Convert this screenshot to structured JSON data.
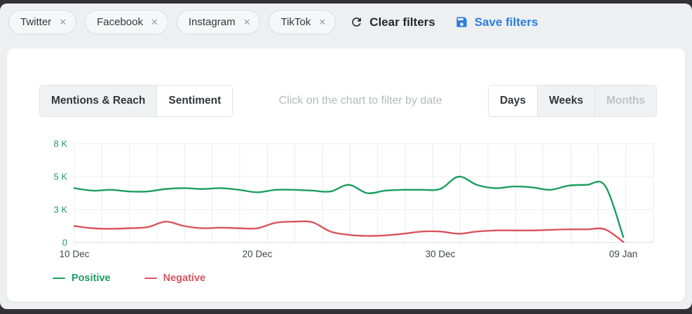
{
  "filter_bar": {
    "chips": [
      {
        "label": "Twitter"
      },
      {
        "label": "Facebook"
      },
      {
        "label": "Instagram"
      },
      {
        "label": "TikTok"
      }
    ],
    "close_glyph": "✕",
    "clear_filters_label": "Clear filters",
    "save_filters_label": "Save filters"
  },
  "panel": {
    "tabs": [
      {
        "label": "Mentions & Reach",
        "selected": false
      },
      {
        "label": "Sentiment",
        "selected": true
      }
    ],
    "hint": "Click on the chart to filter by date",
    "granularity": [
      {
        "label": "Days",
        "selected": true,
        "disabled": false
      },
      {
        "label": "Weeks",
        "selected": false,
        "disabled": false
      },
      {
        "label": "Months",
        "selected": false,
        "disabled": true
      }
    ]
  },
  "chart_data": {
    "type": "line",
    "units": "thousands of mentions",
    "x": [
      "10 Dec",
      "11 Dec",
      "12 Dec",
      "13 Dec",
      "14 Dec",
      "15 Dec",
      "16 Dec",
      "17 Dec",
      "18 Dec",
      "19 Dec",
      "20 Dec",
      "21 Dec",
      "22 Dec",
      "23 Dec",
      "24 Dec",
      "25 Dec",
      "26 Dec",
      "27 Dec",
      "28 Dec",
      "29 Dec",
      "30 Dec",
      "31 Dec",
      "01 Jan",
      "02 Jan",
      "03 Jan",
      "04 Jan",
      "05 Jan",
      "06 Jan",
      "07 Jan",
      "08 Jan",
      "09 Jan"
    ],
    "series": [
      {
        "name": "Positive",
        "color": "#1b9e5f",
        "values": [
          4.3,
          4.15,
          4.2,
          4.1,
          4.1,
          4.25,
          4.3,
          4.25,
          4.3,
          4.2,
          4.05,
          4.2,
          4.2,
          4.15,
          4.1,
          4.5,
          4.0,
          4.15,
          4.2,
          4.2,
          4.25,
          5.0,
          4.5,
          4.3,
          4.4,
          4.35,
          4.2,
          4.45,
          4.5,
          4.45,
          0.5
        ]
      },
      {
        "name": "Negative",
        "color": "#d9545d",
        "values": [
          1.5,
          1.3,
          1.25,
          1.3,
          1.4,
          1.9,
          1.5,
          1.3,
          1.35,
          1.3,
          1.3,
          1.8,
          1.9,
          1.85,
          1.0,
          0.7,
          0.6,
          0.65,
          0.8,
          1.0,
          1.0,
          0.8,
          1.0,
          1.1,
          1.1,
          1.1,
          1.15,
          1.2,
          1.2,
          1.2,
          0.05
        ]
      }
    ],
    "y_ticks": [
      {
        "label": "8 K",
        "value": 8
      },
      {
        "label": "5 K",
        "value": 5
      },
      {
        "label": "3 K",
        "value": 3
      },
      {
        "label": "0",
        "value": 0
      }
    ],
    "x_ticks": [
      {
        "label": "10 Dec",
        "index": 0
      },
      {
        "label": "20 Dec",
        "index": 10
      },
      {
        "label": "30 Dec",
        "index": 20
      },
      {
        "label": "09 Jan",
        "index": 30
      }
    ],
    "y_scale": "ticks evenly spaced (piecewise-linear between 0,3,5,8)",
    "grid": true,
    "legend_position": "bottom-left"
  },
  "colors": {
    "positive_green": "#1b9e5f",
    "negative_red": "#d9545d",
    "accent_blue": "#2a7de1",
    "axis_label": "#41464b",
    "grid_line": "#ececee",
    "card_bg": "#ffffff",
    "page_bg": "#edeff1"
  }
}
